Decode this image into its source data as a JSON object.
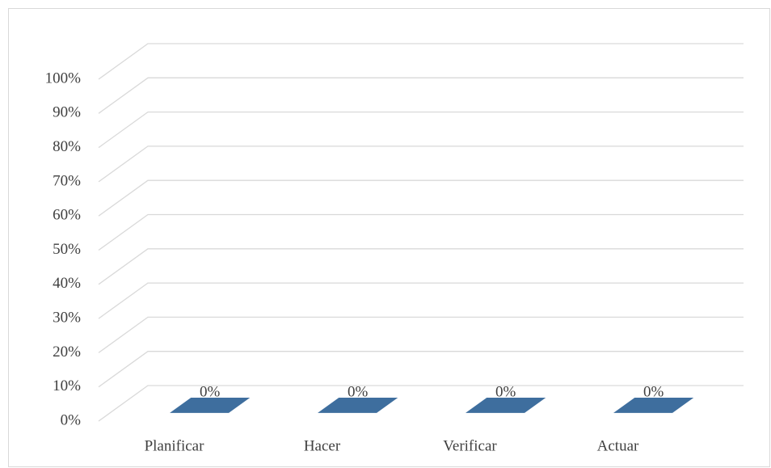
{
  "chart_data": {
    "type": "bar3d",
    "categories": [
      "Planificar",
      "Hacer",
      "Verificar",
      "Actuar"
    ],
    "values": [
      0,
      0,
      0,
      0
    ],
    "value_labels": [
      "0%",
      "0%",
      "0%",
      "0%"
    ],
    "color": "#3e6e9e",
    "ylim": [
      0,
      100
    ],
    "yticks": [
      {
        "value": 0,
        "label": "0%"
      },
      {
        "value": 10,
        "label": "10%"
      },
      {
        "value": 20,
        "label": "20%"
      },
      {
        "value": 30,
        "label": "30%"
      },
      {
        "value": 40,
        "label": "40%"
      },
      {
        "value": 50,
        "label": "50%"
      },
      {
        "value": 60,
        "label": "60%"
      },
      {
        "value": 70,
        "label": "70%"
      },
      {
        "value": 80,
        "label": "80%"
      },
      {
        "value": 90,
        "label": "90%"
      },
      {
        "value": 100,
        "label": "100%"
      }
    ],
    "grid": true
  }
}
